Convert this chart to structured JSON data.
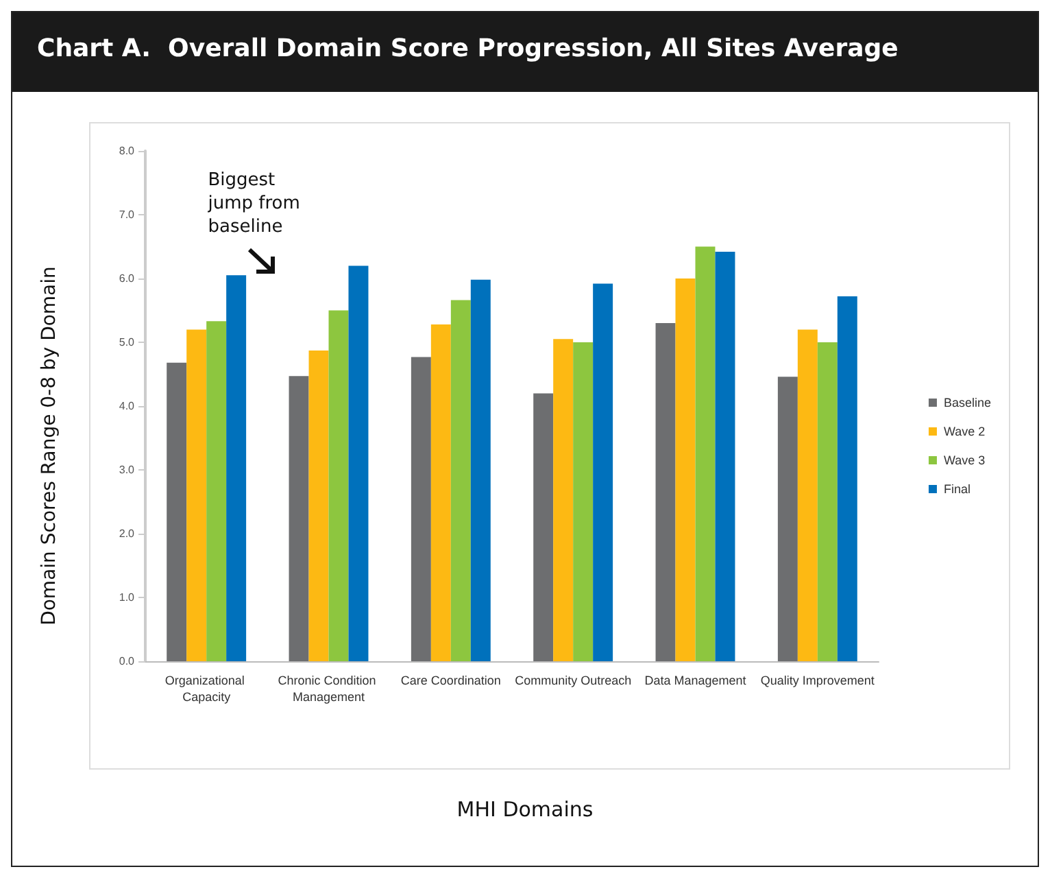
{
  "chart_data": {
    "type": "bar",
    "title": "Chart A.  Overall Domain Score Progression, All Sites Average",
    "xlabel": "MHI Domains",
    "ylabel": "Domain Scores Range 0-8 by Domain",
    "categories": [
      "Organizational Capacity",
      "Chronic Condition Management",
      "Care Coordination",
      "Community Outreach",
      "Data Management",
      "Quality Improvement"
    ],
    "series": [
      {
        "name": "Baseline",
        "color": "#6d6e70",
        "values": [
          4.68,
          4.47,
          4.77,
          4.2,
          5.3,
          4.46
        ]
      },
      {
        "name": "Wave 2",
        "color": "#fdb913",
        "values": [
          5.2,
          4.87,
          5.28,
          5.05,
          6.0,
          5.2
        ]
      },
      {
        "name": "Wave 3",
        "color": "#8dc63f",
        "values": [
          5.33,
          5.5,
          5.66,
          5.0,
          6.5,
          5.0
        ]
      },
      {
        "name": "Final",
        "color": "#0071bc",
        "values": [
          6.05,
          6.2,
          5.98,
          5.92,
          6.42,
          5.72
        ]
      }
    ],
    "ylim": [
      0,
      8
    ],
    "yticks": [
      {
        "value": 0,
        "label": "0.0"
      },
      {
        "value": 1,
        "label": "1.0"
      },
      {
        "value": 2,
        "label": "2.0"
      },
      {
        "value": 3,
        "label": "3.0"
      },
      {
        "value": 4,
        "label": "4.0"
      },
      {
        "value": 5,
        "label": "5.0"
      },
      {
        "value": 6,
        "label": "6.0"
      },
      {
        "value": 7,
        "label": "7.0"
      },
      {
        "value": 8,
        "label": "8.0"
      }
    ],
    "annotations": [
      "Biggest jump from baseline"
    ],
    "grid": false,
    "legend": "right"
  }
}
